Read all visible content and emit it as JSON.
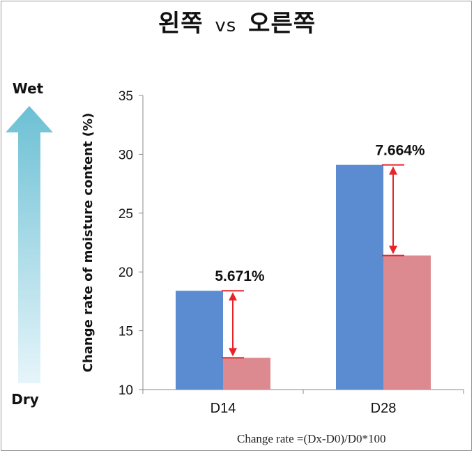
{
  "title": {
    "left": "왼쪽",
    "vs": "vs",
    "right": "오른쪽"
  },
  "footnote": "Change rate =(Dx-D0)/D0*100",
  "arrow_scale": {
    "top_label": "Wet",
    "bottom_label": "Dry"
  },
  "colors": {
    "left_series": "#5b8bd0",
    "right_series": "#dc8a90",
    "annotation": "#e8242a",
    "arrow_top": "#6cc0d4",
    "arrow_bottom": "#e6f5fa"
  },
  "chart_data": {
    "type": "bar",
    "categories": [
      "D14",
      "D28"
    ],
    "series": [
      {
        "values": [
          18.4,
          29.1
        ]
      },
      {
        "values": [
          12.7,
          21.4
        ]
      }
    ],
    "ylabel": "Change rate of moisture content (%)",
    "ylim": [
      10,
      35
    ],
    "yticks": [
      10,
      15,
      20,
      25,
      30,
      35
    ],
    "grid": false,
    "annotations": [
      {
        "category": "D14",
        "label": "5.671%"
      },
      {
        "category": "D28",
        "label": "7.664%"
      }
    ]
  }
}
